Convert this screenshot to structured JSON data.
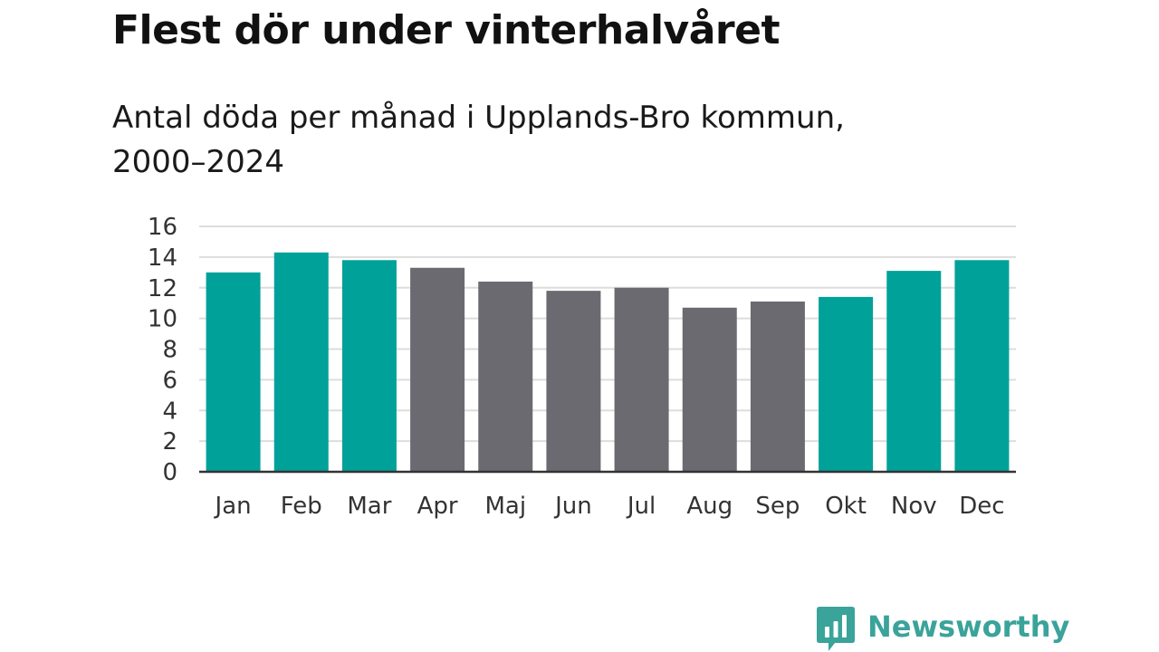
{
  "title": "Flest dör under vinterhalvåret",
  "subtitle": "Antal döda per månad i Upplands-Bro kommun, 2000–2024",
  "brand": {
    "name": "Newsworthy",
    "icon": "newsworthy-logo-icon",
    "color": "#3aa39a"
  },
  "colors": {
    "winter": "#00a199",
    "summer": "#6b6a71",
    "grid": "#dddddd",
    "axis": "#333333"
  },
  "chart_data": {
    "type": "bar",
    "title": "Flest dör under vinterhalvåret",
    "subtitle": "Antal döda per månad i Upplands-Bro kommun, 2000–2024",
    "xlabel": "",
    "ylabel": "",
    "ylim": [
      0,
      16
    ],
    "yticks": [
      0,
      2,
      4,
      6,
      8,
      10,
      12,
      14,
      16
    ],
    "grid": true,
    "legend": "none",
    "categories": [
      "Jan",
      "Feb",
      "Mar",
      "Apr",
      "Maj",
      "Jun",
      "Jul",
      "Aug",
      "Sep",
      "Okt",
      "Nov",
      "Dec"
    ],
    "values": [
      13.0,
      14.3,
      13.8,
      13.3,
      12.4,
      11.8,
      12.0,
      10.7,
      11.1,
      11.4,
      13.1,
      13.8
    ],
    "highlight": [
      true,
      true,
      true,
      false,
      false,
      false,
      false,
      false,
      false,
      true,
      true,
      true
    ]
  }
}
